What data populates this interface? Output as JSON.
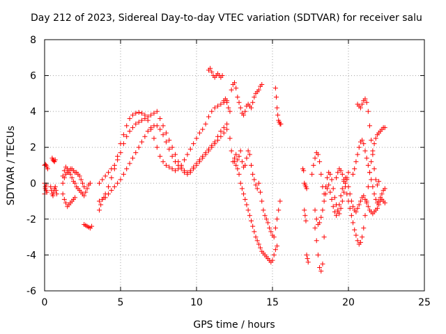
{
  "chart_data": {
    "type": "scatter",
    "title": "Day 212 of 2023, Sidereal Day-to-day VTEC variation (SDTVAR) for receiver salu",
    "xlabel": "GPS time / hours",
    "ylabel": "SDTVAR / TECUs",
    "xlim": [
      0,
      25
    ],
    "ylim": [
      -6,
      8
    ],
    "xticks": [
      "0",
      "5",
      "10",
      "15",
      "20",
      "25"
    ],
    "yticks": [
      "-6",
      "-4",
      "-2",
      "0",
      "2",
      "4",
      "6",
      "8"
    ],
    "grid": true,
    "marker": "+",
    "color": "#ff0000",
    "series": [
      {
        "x": [
          0.0,
          0.05,
          0.1,
          0.15,
          0.2,
          0.0,
          0.05,
          0.1,
          0.15,
          0.0,
          0.05,
          0.1,
          0.5,
          0.55,
          0.6,
          0.65,
          0.7,
          0.4,
          0.45,
          0.5,
          0.55,
          0.6,
          0.65,
          0.7,
          0.75,
          0.8,
          1.2,
          1.3,
          1.4,
          1.5,
          1.6,
          1.7,
          1.8,
          1.9,
          2.0,
          2.1,
          2.2,
          2.3,
          2.4,
          2.5,
          2.6,
          2.7,
          2.8,
          2.9,
          3.0,
          1.2,
          1.3,
          1.4,
          1.5,
          1.6,
          1.7,
          1.8,
          1.9,
          2.0,
          2.1,
          2.2,
          2.3,
          2.4,
          2.5,
          2.6,
          1.2,
          1.3,
          1.4,
          1.5,
          1.6,
          1.7,
          1.8,
          1.9,
          2.0,
          2.6,
          2.7,
          2.8,
          2.9,
          3.0,
          3.1,
          3.6,
          3.7,
          3.8,
          3.9,
          4.0,
          4.2,
          4.4,
          4.6,
          4.8,
          5.0,
          5.2,
          5.4,
          5.6,
          5.8,
          6.0,
          6.2,
          6.4,
          6.6,
          6.8,
          7.0,
          7.2,
          7.4,
          7.6,
          7.8,
          8.0,
          8.2,
          8.4,
          8.6,
          8.8,
          9.0,
          9.2,
          9.4,
          9.6,
          9.8,
          10.0,
          10.2,
          10.4,
          10.6,
          10.8,
          11.0,
          11.2,
          11.4,
          11.6,
          11.8,
          12.0,
          3.6,
          3.8,
          4.0,
          4.2,
          4.4,
          4.6,
          4.8,
          5.0,
          5.2,
          5.4,
          5.6,
          5.8,
          6.0,
          6.2,
          6.4,
          6.6,
          6.8,
          7.0,
          7.2,
          7.4,
          7.6,
          7.8,
          8.0,
          8.2,
          8.4,
          8.6,
          8.8,
          9.0,
          9.2,
          9.4,
          9.6,
          9.8,
          10.0,
          10.2,
          10.4,
          10.6,
          10.8,
          11.0,
          11.2,
          11.4,
          11.6,
          11.8,
          12.0,
          3.6,
          3.8,
          4.0,
          4.2,
          4.4,
          4.6,
          4.8,
          5.0,
          5.2,
          5.4,
          5.6,
          5.8,
          6.0,
          6.2,
          6.4,
          6.6,
          6.8,
          7.0,
          7.2,
          7.4,
          7.6,
          7.8,
          8.0,
          8.2,
          8.4,
          8.6,
          8.8,
          9.0,
          9.2,
          9.4,
          9.6,
          9.8,
          10.0,
          10.2,
          10.4,
          10.6,
          10.8,
          11.0,
          11.2,
          11.4,
          11.6,
          11.8,
          12.0,
          10.8,
          10.9,
          11.0,
          11.1,
          11.2,
          11.3,
          11.4,
          11.5,
          11.6,
          11.7,
          11.8,
          11.9,
          12.0,
          12.1,
          12.2,
          12.3,
          12.4,
          12.5,
          12.6,
          12.7,
          12.8,
          12.9,
          13.0,
          13.1,
          13.2,
          13.3,
          13.4,
          13.5,
          13.6,
          13.7,
          13.8,
          13.9,
          14.0,
          14.1,
          14.2,
          14.3,
          12.2,
          12.3,
          12.4,
          12.5,
          12.6,
          12.7,
          12.8,
          12.9,
          13.0,
          13.1,
          13.2,
          13.3,
          13.4,
          13.5,
          13.6,
          13.7,
          13.8,
          13.9,
          14.0,
          14.1,
          14.2,
          14.3,
          14.4,
          14.5,
          14.6,
          14.7,
          14.8,
          14.9,
          15.0,
          15.1,
          15.2,
          15.3,
          15.4,
          15.5,
          12.5,
          12.6,
          12.7,
          12.8,
          12.9,
          13.0,
          13.1,
          13.2,
          13.3,
          13.4,
          13.5,
          13.6,
          13.7,
          13.8,
          13.9,
          14.0,
          14.1,
          14.2,
          14.3,
          14.4,
          14.5,
          14.6,
          14.7,
          14.8,
          14.9,
          15.0,
          15.1,
          15.2,
          15.3,
          15.2,
          15.25,
          15.3,
          15.35,
          15.4,
          15.45,
          15.5,
          15.55,
          17.0,
          17.05,
          17.1,
          17.15,
          17.2,
          17.25,
          17.1,
          17.15,
          17.2,
          17.25,
          17.3,
          17.35,
          17.6,
          17.7,
          17.8,
          17.9,
          18.0,
          18.1,
          18.2,
          18.3,
          18.4,
          18.5,
          18.6,
          18.7,
          18.8,
          18.9,
          19.0,
          19.1,
          19.2,
          19.3,
          19.4,
          19.5,
          19.6,
          19.7,
          19.8,
          19.9,
          20.0,
          17.8,
          17.9,
          18.0,
          18.1,
          18.2,
          18.3,
          18.4,
          18.5,
          18.6,
          18.7,
          18.8,
          18.9,
          19.0,
          19.1,
          19.2,
          19.3,
          19.4,
          19.5,
          19.6,
          19.7,
          19.8,
          19.9,
          20.0,
          20.1,
          20.2,
          20.3,
          20.4,
          20.5,
          20.6,
          20.7,
          20.8,
          20.9,
          21.0,
          21.1,
          21.2,
          21.3,
          21.4,
          21.5,
          21.6,
          21.7,
          21.8,
          21.9,
          22.0,
          22.1,
          22.2,
          22.3,
          22.4,
          17.8,
          17.9,
          18.0,
          18.1,
          18.2,
          18.3,
          18.4,
          19.2,
          19.3,
          19.4,
          19.5,
          19.6,
          19.7,
          19.8,
          19.9,
          20.0,
          20.1,
          20.2,
          20.3,
          20.4,
          20.5,
          20.6,
          20.7,
          20.8,
          20.9,
          21.0,
          21.1,
          21.2,
          21.3,
          21.4,
          21.5,
          21.6,
          21.7,
          21.8,
          21.9,
          22.0,
          22.1,
          22.2,
          22.3,
          22.4,
          20.6,
          20.7,
          20.8,
          20.9,
          21.0,
          21.1,
          21.2,
          21.3,
          21.4,
          21.5,
          21.6,
          21.7,
          21.8,
          21.9,
          22.0,
          20.3,
          20.4,
          20.5,
          20.6,
          20.7,
          20.8,
          20.9,
          21.0,
          21.1,
          21.2,
          21.3,
          21.4,
          21.5,
          21.6,
          21.7,
          21.8,
          21.9,
          22.0,
          22.1,
          22.2,
          22.3,
          22.4
        ],
        "y": [
          1.0,
          1.05,
          1.0,
          0.9,
          0.8,
          0.0,
          -0.2,
          -0.4,
          -0.5,
          -0.6,
          -0.3,
          -0.1,
          1.4,
          1.3,
          1.25,
          1.2,
          1.3,
          -0.2,
          -0.4,
          -0.6,
          -0.7,
          -0.5,
          -0.3,
          -0.2,
          -0.4,
          -0.6,
          0.4,
          0.7,
          0.9,
          0.8,
          0.6,
          0.5,
          0.3,
          0.1,
          0.0,
          -0.2,
          -0.3,
          -0.4,
          -0.5,
          -0.6,
          -0.7,
          -0.5,
          -0.3,
          -0.1,
          0.0,
          0.0,
          0.3,
          0.5,
          0.6,
          0.7,
          0.8,
          0.8,
          0.7,
          0.6,
          0.6,
          0.5,
          0.4,
          0.2,
          0.0,
          -0.2,
          -0.6,
          -0.9,
          -1.1,
          -1.3,
          -1.2,
          -1.1,
          -1.0,
          -0.9,
          -0.8,
          -2.3,
          -2.35,
          -2.4,
          -2.45,
          -2.5,
          -2.4,
          -1.5,
          -1.2,
          -0.9,
          -0.8,
          -0.6,
          -0.2,
          0.3,
          0.8,
          1.5,
          2.2,
          2.7,
          3.2,
          3.6,
          3.8,
          3.9,
          3.95,
          3.9,
          3.8,
          3.5,
          3.0,
          2.5,
          2.0,
          1.5,
          1.2,
          1.0,
          0.9,
          0.8,
          0.7,
          0.8,
          1.0,
          1.3,
          1.6,
          1.9,
          2.2,
          2.5,
          2.8,
          3.0,
          3.3,
          3.7,
          4.0,
          4.2,
          4.3,
          4.4,
          4.5,
          4.6,
          0.0,
          0.2,
          0.4,
          0.6,
          0.8,
          1.0,
          1.3,
          1.7,
          2.2,
          2.6,
          2.9,
          3.1,
          3.3,
          3.4,
          3.5,
          3.6,
          3.7,
          3.8,
          3.9,
          4.0,
          3.6,
          3.2,
          2.8,
          2.4,
          2.0,
          1.6,
          1.2,
          0.9,
          0.7,
          0.6,
          0.7,
          0.9,
          1.1,
          1.3,
          1.5,
          1.7,
          1.9,
          2.1,
          2.3,
          2.6,
          2.9,
          3.1,
          3.3,
          -1.0,
          -0.9,
          -0.8,
          -0.6,
          -0.4,
          -0.2,
          0.0,
          0.2,
          0.5,
          0.8,
          1.1,
          1.4,
          1.7,
          2.0,
          2.3,
          2.6,
          2.9,
          3.1,
          3.2,
          3.2,
          3.0,
          2.7,
          2.3,
          1.9,
          1.5,
          1.2,
          1.0,
          0.8,
          0.6,
          0.5,
          0.6,
          0.8,
          1.0,
          1.2,
          1.4,
          1.6,
          1.8,
          2.0,
          2.2,
          2.4,
          2.6,
          2.8,
          3.0,
          6.3,
          6.4,
          6.2,
          6.0,
          5.9,
          6.0,
          6.1,
          6.0,
          5.9,
          6.0,
          4.6,
          4.7,
          4.5,
          4.2,
          4.0,
          5.2,
          5.5,
          5.6,
          5.3,
          4.8,
          4.5,
          4.2,
          3.9,
          3.8,
          4.0,
          4.3,
          4.4,
          4.3,
          4.2,
          4.5,
          4.8,
          5.0,
          5.1,
          5.2,
          5.4,
          5.5,
          2.5,
          1.8,
          1.2,
          1.4,
          1.6,
          1.3,
          1.5,
          1.8,
          1.2,
          0.9,
          1.0,
          1.4,
          1.8,
          1.6,
          1.0,
          0.5,
          0.2,
          -0.1,
          -0.3,
          0.0,
          -0.5,
          -1.0,
          -1.5,
          -1.8,
          -2.0,
          -2.2,
          -2.5,
          -2.7,
          -2.9,
          -3.0,
          -2.5,
          -2.0,
          -1.5,
          -1.0,
          1.2,
          1.0,
          0.8,
          0.5,
          0.0,
          -0.3,
          -0.6,
          -0.9,
          -1.2,
          -1.5,
          -1.8,
          -2.1,
          -2.4,
          -2.7,
          -3.0,
          -3.2,
          -3.4,
          -3.6,
          -3.8,
          -3.9,
          -4.0,
          -4.1,
          -4.2,
          -4.3,
          -4.4,
          -4.3,
          -4.0,
          -3.7,
          -3.5,
          5.3,
          4.8,
          4.2,
          3.8,
          3.5,
          3.4,
          3.3,
          3.3,
          0.8,
          0.7,
          0.0,
          -0.1,
          -0.2,
          -0.3,
          -1.5,
          -1.8,
          -2.1,
          -4.0,
          -4.2,
          -4.4,
          0.5,
          1.0,
          1.4,
          1.7,
          1.6,
          1.2,
          0.5,
          -0.2,
          -0.6,
          -0.2,
          0.3,
          0.6,
          0.5,
          0.2,
          -0.3,
          -0.8,
          -1.2,
          -1.5,
          -1.7,
          -1.4,
          -1.0,
          -0.5,
          0.0,
          0.3,
          0.6,
          -1.5,
          -2.0,
          -2.3,
          -2.2,
          -1.9,
          -1.5,
          -1.0,
          -0.6,
          -0.3,
          -0.1,
          -0.5,
          -0.9,
          -1.3,
          -1.6,
          -1.8,
          -1.6,
          -1.2,
          -0.7,
          -0.3,
          0.1,
          0.3,
          0.2,
          -0.2,
          -0.6,
          -1.0,
          -1.3,
          -1.5,
          -1.6,
          -1.4,
          -1.2,
          -1.0,
          -0.8,
          -0.7,
          -0.9,
          -1.1,
          -1.3,
          -1.5,
          -1.6,
          -1.7,
          -1.6,
          -1.5,
          -1.4,
          -1.2,
          -1.0,
          -0.9,
          -1.0,
          -1.1,
          -2.5,
          -3.2,
          -4.0,
          -4.7,
          -4.9,
          -4.5,
          -3.0,
          0.3,
          0.6,
          0.8,
          0.7,
          0.5,
          0.2,
          -0.2,
          -0.6,
          -1.0,
          -1.4,
          -1.8,
          -2.2,
          -2.6,
          -2.9,
          -3.2,
          -3.4,
          -3.3,
          -3.0,
          -2.5,
          -1.8,
          -1.0,
          -0.2,
          0.6,
          1.2,
          1.8,
          2.2,
          2.5,
          2.7,
          2.8,
          2.9,
          3.0,
          3.1,
          3.1,
          4.4,
          4.3,
          4.2,
          4.4,
          4.6,
          4.7,
          4.5,
          4.0,
          3.2,
          2.4,
          1.6,
          0.8,
          0.2,
          -0.1,
          0.1,
          0.5,
          0.8,
          1.2,
          1.6,
          2.0,
          2.3,
          2.4,
          2.2,
          1.8,
          1.4,
          1.0,
          0.6,
          0.2,
          -0.2,
          -0.6,
          -0.9,
          -1.1,
          -1.0,
          -0.8,
          -0.6,
          -0.4,
          -0.3
        ]
      }
    ]
  }
}
